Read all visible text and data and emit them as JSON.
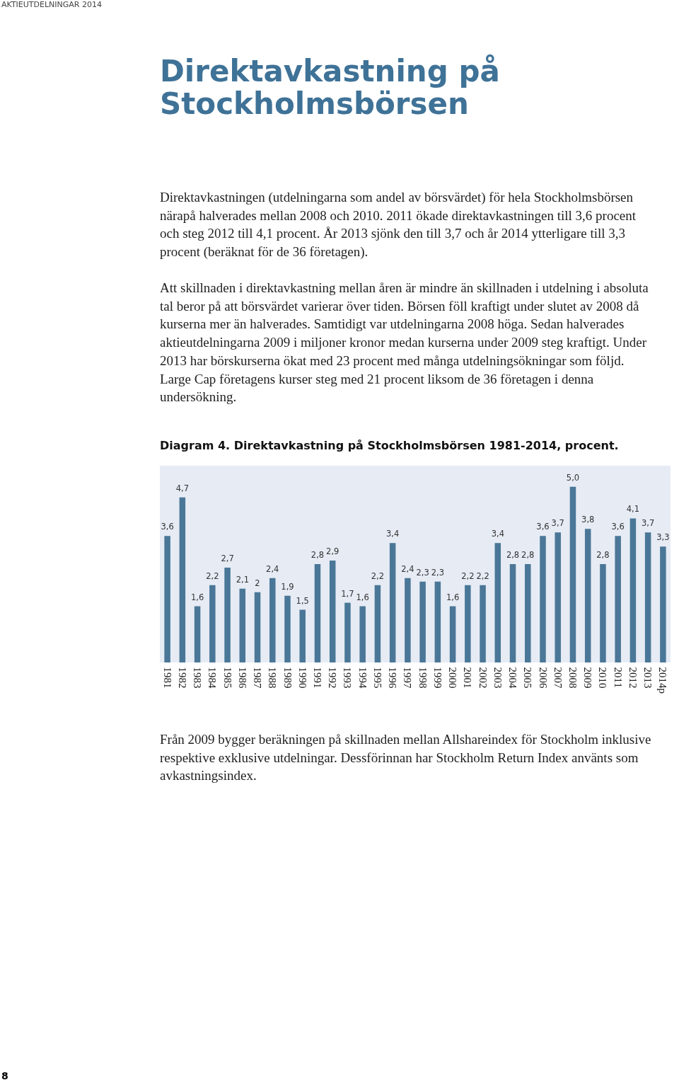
{
  "chart_data": {
    "type": "bar",
    "title": "Diagram 4. Direktavkastning på Stockholmsbörsen 1981-2014, procent.",
    "categories": [
      "1981",
      "1982",
      "1983",
      "1984",
      "1985",
      "1986",
      "1987",
      "1988",
      "1989",
      "1990",
      "1991",
      "1992",
      "1993",
      "1994",
      "1995",
      "1996",
      "1997",
      "1998",
      "1999",
      "2000",
      "2001",
      "2002",
      "2003",
      "2004",
      "2005",
      "2006",
      "2007",
      "2008",
      "2009",
      "2010",
      "2011",
      "2012",
      "2013",
      "2014p"
    ],
    "values": [
      3.6,
      4.7,
      1.6,
      2.2,
      2.7,
      2.1,
      2,
      2.4,
      1.9,
      1.5,
      2.8,
      2.9,
      1.7,
      1.6,
      2.2,
      3.4,
      2.4,
      2.3,
      2.3,
      1.6,
      2.2,
      2.2,
      3.4,
      2.8,
      2.8,
      3.6,
      3.7,
      5.0,
      3.8,
      2.8,
      3.6,
      4.1,
      3.7,
      3.3
    ],
    "value_labels": [
      "3,6",
      "4,7",
      "1,6",
      "2,2",
      "2,7",
      "2,1",
      "2",
      "2,4",
      "1,9",
      "1,5",
      "2,8",
      "2,9",
      "1,7",
      "1,6",
      "2,2",
      "3,4",
      "2,4",
      "2,3",
      "2,3",
      "1,6",
      "2,2",
      "2,2",
      "3,4",
      "2,8",
      "2,8",
      "3,6",
      "3,7",
      "5,0",
      "3,8",
      "2,8",
      "3,6",
      "4,1",
      "3,7",
      "3,3"
    ],
    "color": "#4a7797",
    "grid": false,
    "annotations": [
      "AKTIEUTDELNINGAR 2014",
      "Direktavkastning på Stockholmsbörsen",
      "Direktavkastningen (utdelningarna som andel av börsvärdet) för hela Stockholmsbörsen närapå halverades mellan 2008 och 2010. 2011 ökade direktavkastningen till 3,6 procent och steg 2012 till 4,1 procent. År 2013 sjönk den till 3,7 och år 2014 ytterligare till 3,3 procent (beräknat för de 36 företagen).",
      "Att skillnaden i direktavkastning mellan åren är mindre än skillnaden i utdelning i absoluta tal beror på att börsvärdet varierar över tiden. Börsen föll kraftigt under slutet av 2008 då kurserna mer än halverades. Samtidigt var utdelningarna 2008 höga. Sedan halverades aktieutdelningarna 2009 i miljoner kronor medan kurserna under 2009 steg kraftigt. Under 2013 har börskurserna ökat med 23 procent med många utdelningsökningar som följd. Large Cap företagens kurser steg med 21 procent liksom de 36 företagen i denna undersökning.",
      "Från 2009 bygger beräkningen på skillnaden mellan Allshareindex för Stockholm inklusive respektive exklusive utdelningar. Dessförinnan har Stockholm Return Index använts som avkastningsindex.",
      "8"
    ]
  }
}
